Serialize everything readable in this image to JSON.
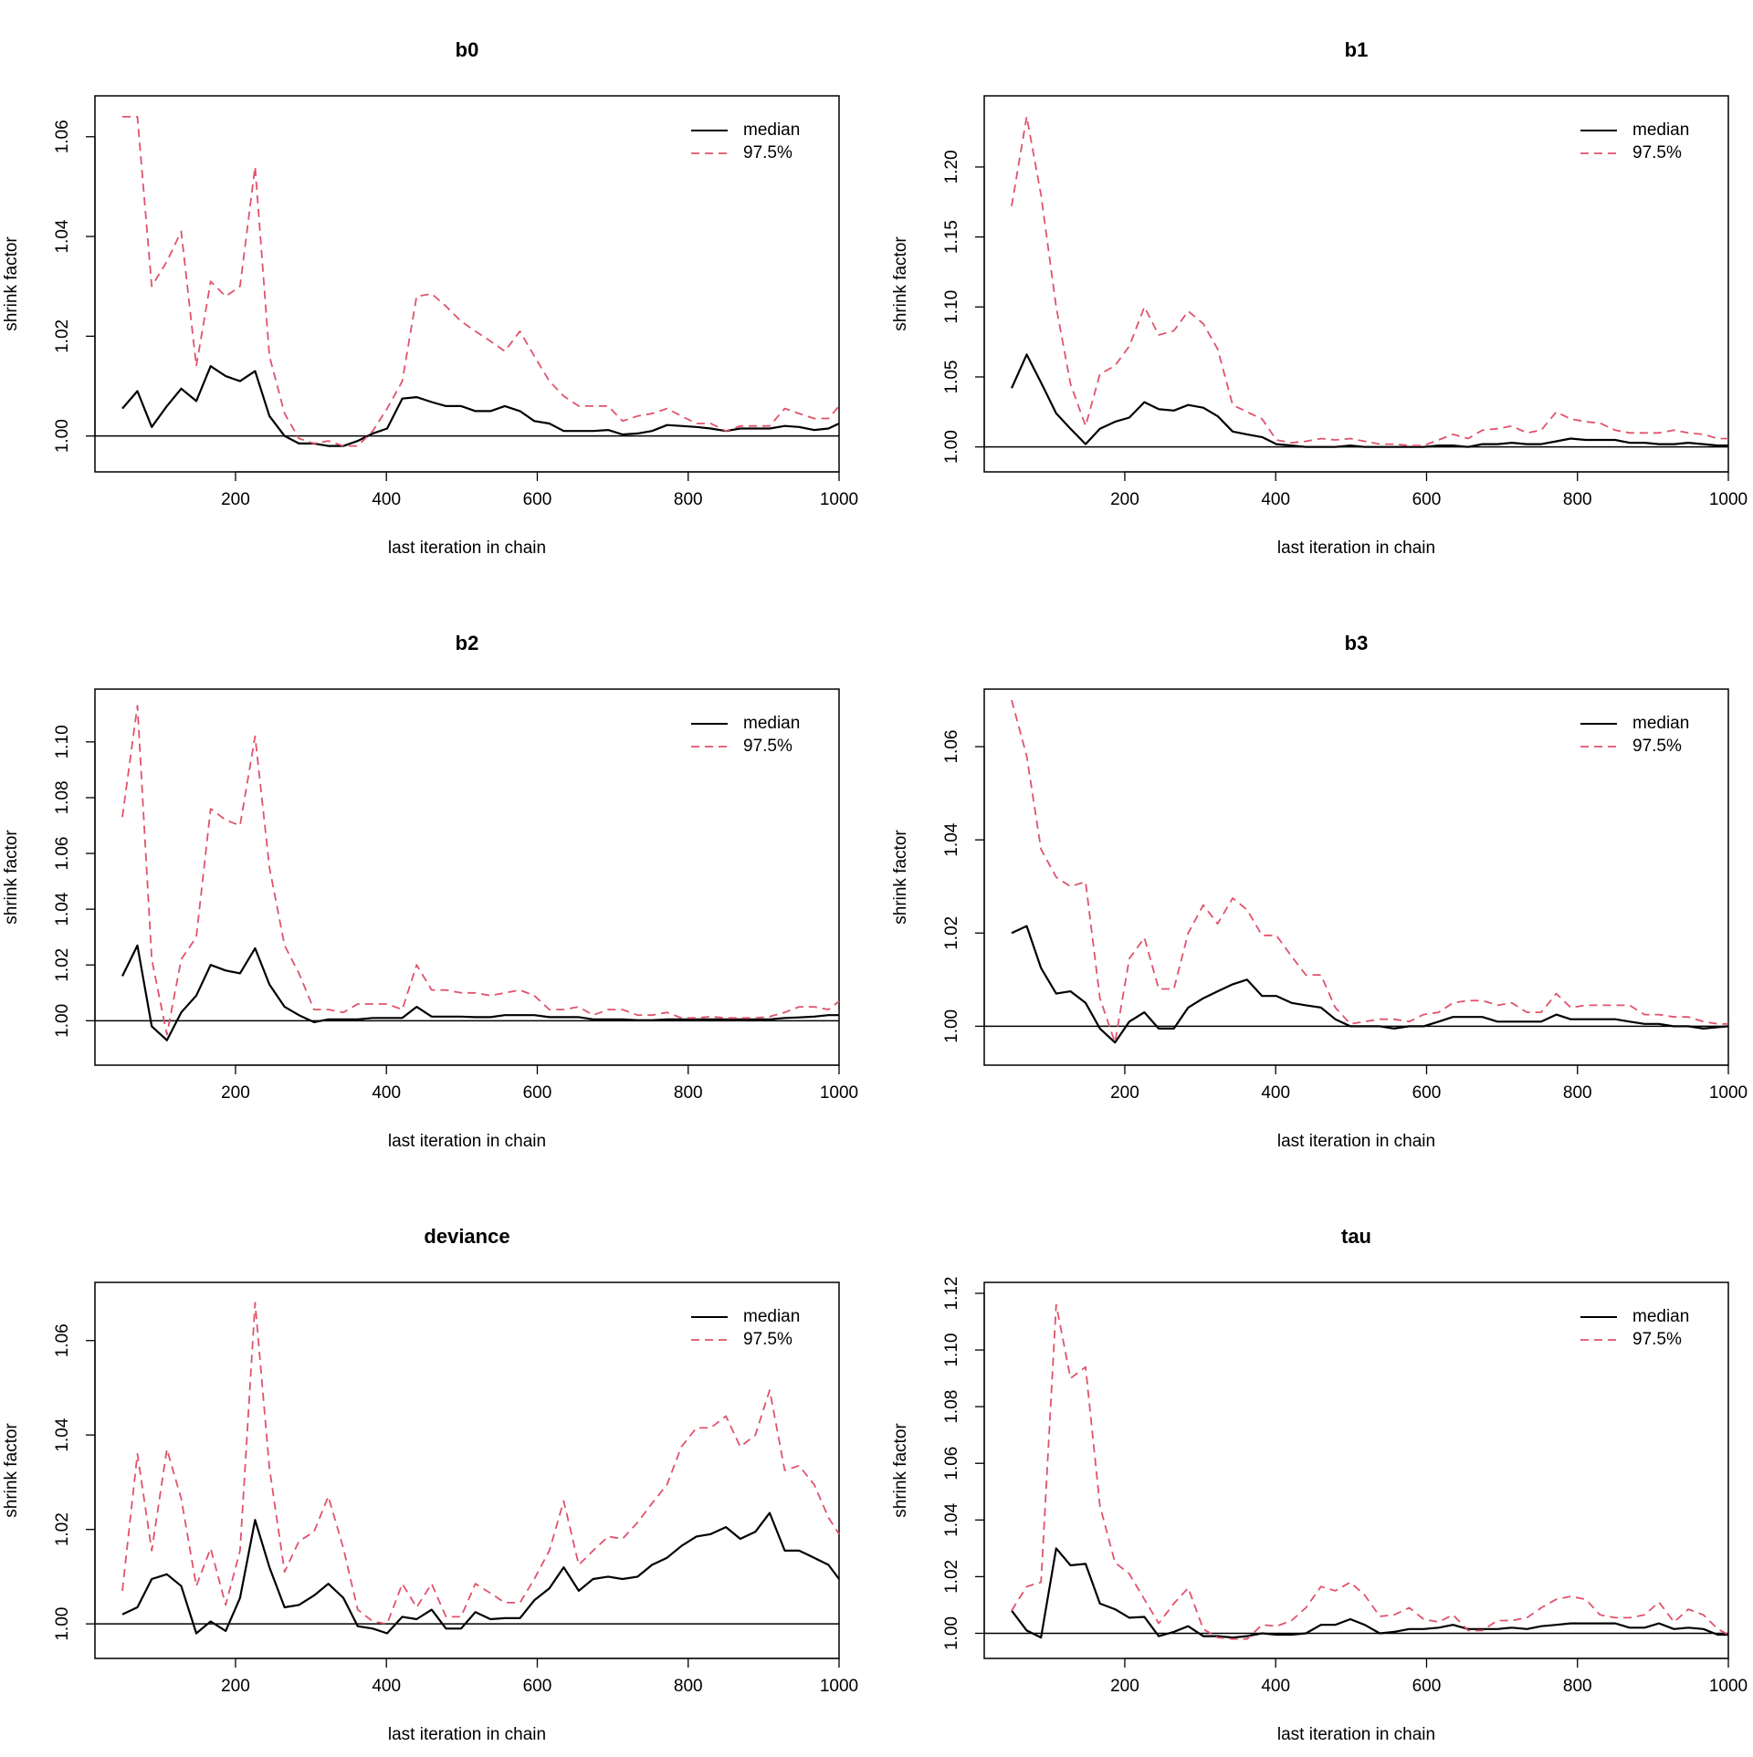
{
  "legend": {
    "median": "median",
    "upper": "97.5%"
  },
  "colors": {
    "median": "#000000",
    "upper": "#DF536B"
  },
  "chart_data": [
    {
      "type": "line",
      "title": "b0",
      "xlabel": "last iteration in chain",
      "ylabel": "shrink factor",
      "xlim": [
        50,
        1000
      ],
      "ylim": [
        0.995,
        1.066
      ],
      "xticks": [
        "200",
        "400",
        "600",
        "800",
        "1000"
      ],
      "yticks": [
        "1.00",
        "1.02",
        "1.04",
        "1.06"
      ],
      "legend_position": "top-right",
      "grid": false,
      "x": [
        50,
        70,
        89,
        109,
        128,
        148,
        167,
        187,
        206,
        226,
        245,
        265,
        284,
        304,
        323,
        343,
        362,
        382,
        401,
        421,
        440,
        460,
        479,
        499,
        518,
        538,
        557,
        577,
        596,
        616,
        635,
        655,
        674,
        694,
        713,
        733,
        752,
        772,
        791,
        811,
        830,
        850,
        869,
        889,
        908,
        928,
        947,
        967,
        986,
        1000
      ],
      "series": [
        {
          "name": "median",
          "values": [
            1.0055,
            1.009,
            1.0018,
            1.006,
            1.0095,
            1.007,
            1.014,
            1.012,
            1.011,
            1.013,
            1.004,
            1.0,
            0.9985,
            0.9985,
            0.998,
            0.998,
            0.999,
            1.0005,
            1.0015,
            1.0075,
            1.0078,
            1.0068,
            1.006,
            1.006,
            1.005,
            1.005,
            1.006,
            1.005,
            1.003,
            1.0025,
            1.001,
            1.001,
            1.001,
            1.0012,
            1.0003,
            1.0005,
            1.001,
            1.0022,
            1.002,
            1.0018,
            1.0015,
            1.001,
            1.0015,
            1.0015,
            1.0015,
            1.002,
            1.0018,
            1.0012,
            1.0015,
            1.0025
          ]
        },
        {
          "name": "97.5%",
          "values": [
            1.064,
            1.064,
            1.03,
            1.035,
            1.041,
            1.014,
            1.031,
            1.028,
            1.03,
            1.054,
            1.016,
            1.0045,
            0.9995,
            0.9985,
            0.999,
            0.998,
            0.998,
            1.001,
            1.0055,
            1.011,
            1.028,
            1.0285,
            1.026,
            1.023,
            1.021,
            1.019,
            1.017,
            1.021,
            1.016,
            1.011,
            1.008,
            1.006,
            1.006,
            1.006,
            1.003,
            1.004,
            1.0045,
            1.0055,
            1.004,
            1.0025,
            1.0025,
            1.001,
            1.002,
            1.002,
            1.002,
            1.0055,
            1.0045,
            1.0035,
            1.0035,
            1.006
          ]
        }
      ]
    },
    {
      "type": "line",
      "title": "b1",
      "xlabel": "last iteration in chain",
      "ylabel": "shrink factor",
      "xlim": [
        50,
        1000
      ],
      "ylim": [
        0.99,
        1.243
      ],
      "xticks": [
        "200",
        "400",
        "600",
        "800",
        "1000"
      ],
      "yticks": [
        "1.00",
        "1.05",
        "1.10",
        "1.15",
        "1.20"
      ],
      "legend_position": "top-right",
      "grid": false,
      "x": [
        50,
        70,
        89,
        109,
        128,
        148,
        167,
        187,
        206,
        226,
        245,
        265,
        284,
        304,
        323,
        343,
        362,
        382,
        401,
        421,
        440,
        460,
        479,
        499,
        518,
        538,
        557,
        577,
        596,
        616,
        635,
        655,
        674,
        694,
        713,
        733,
        752,
        772,
        791,
        811,
        830,
        850,
        869,
        889,
        908,
        928,
        947,
        967,
        986,
        1000
      ],
      "series": [
        {
          "name": "median",
          "values": [
            1.042,
            1.066,
            1.046,
            1.024,
            1.013,
            1.002,
            1.013,
            1.018,
            1.021,
            1.032,
            1.027,
            1.026,
            1.03,
            1.028,
            1.022,
            1.011,
            1.009,
            1.007,
            1.002,
            1.001,
            1.0,
            1.0,
            1.0,
            1.001,
            1.0,
            1.0,
            1.0,
            1.0,
            1.0,
            1.001,
            1.001,
            1.0,
            1.002,
            1.002,
            1.003,
            1.002,
            1.002,
            1.004,
            1.006,
            1.005,
            1.005,
            1.005,
            1.003,
            1.003,
            1.002,
            1.002,
            1.003,
            1.002,
            1.001,
            1.001
          ]
        },
        {
          "name": "97.5%",
          "values": [
            1.172,
            1.236,
            1.18,
            1.1,
            1.045,
            1.015,
            1.052,
            1.058,
            1.072,
            1.1,
            1.08,
            1.083,
            1.097,
            1.088,
            1.07,
            1.03,
            1.025,
            1.02,
            1.005,
            1.003,
            1.004,
            1.006,
            1.005,
            1.006,
            1.004,
            1.002,
            1.002,
            1.001,
            1.001,
            1.005,
            1.009,
            1.006,
            1.012,
            1.013,
            1.015,
            1.01,
            1.012,
            1.025,
            1.02,
            1.018,
            1.017,
            1.012,
            1.01,
            1.01,
            1.01,
            1.012,
            1.01,
            1.009,
            1.006,
            1.006
          ]
        }
      ]
    },
    {
      "type": "line",
      "title": "b2",
      "xlabel": "last iteration in chain",
      "ylabel": "shrink factor",
      "xlim": [
        50,
        1000
      ],
      "ylim": [
        0.988,
        1.115
      ],
      "xticks": [
        "200",
        "400",
        "600",
        "800",
        "1000"
      ],
      "yticks": [
        "1.00",
        "1.02",
        "1.04",
        "1.06",
        "1.08",
        "1.10"
      ],
      "legend_position": "top-right",
      "grid": false,
      "x": [
        50,
        70,
        89,
        109,
        128,
        148,
        167,
        187,
        206,
        226,
        245,
        265,
        284,
        304,
        323,
        343,
        362,
        382,
        401,
        421,
        440,
        460,
        479,
        499,
        518,
        538,
        557,
        577,
        596,
        616,
        635,
        655,
        674,
        694,
        713,
        733,
        752,
        772,
        791,
        811,
        830,
        850,
        869,
        889,
        908,
        928,
        947,
        967,
        986,
        1000
      ],
      "series": [
        {
          "name": "median",
          "values": [
            1.016,
            1.027,
            0.998,
            0.993,
            1.003,
            1.009,
            1.02,
            1.018,
            1.017,
            1.026,
            1.013,
            1.005,
            1.002,
            0.9995,
            1.0005,
            1.0005,
            1.0005,
            1.001,
            1.001,
            1.001,
            1.005,
            1.0015,
            1.0015,
            1.0015,
            1.0013,
            1.0013,
            1.002,
            1.002,
            1.002,
            1.0013,
            1.0013,
            1.0013,
            1.0005,
            1.0005,
            1.0005,
            1.0002,
            1.0002,
            1.0005,
            1.0005,
            1.0005,
            1.0005,
            1.0005,
            1.0005,
            1.0005,
            1.0005,
            1.001,
            1.0012,
            1.0015,
            1.002,
            1.002
          ]
        },
        {
          "name": "97.5%",
          "values": [
            1.073,
            1.113,
            1.022,
            0.995,
            1.022,
            1.03,
            1.076,
            1.072,
            1.07,
            1.102,
            1.055,
            1.027,
            1.017,
            1.004,
            1.004,
            1.003,
            1.006,
            1.006,
            1.006,
            1.004,
            1.02,
            1.011,
            1.011,
            1.01,
            1.01,
            1.009,
            1.01,
            1.011,
            1.009,
            1.004,
            1.004,
            1.005,
            1.002,
            1.004,
            1.004,
            1.002,
            1.002,
            1.003,
            1.001,
            1.001,
            1.0015,
            1.001,
            1.001,
            1.001,
            1.0015,
            1.003,
            1.005,
            1.005,
            1.004,
            1.007
          ]
        }
      ]
    },
    {
      "type": "line",
      "title": "b3",
      "xlabel": "last iteration in chain",
      "ylabel": "shrink factor",
      "xlim": [
        50,
        1000
      ],
      "ylim": [
        0.994,
        1.07
      ],
      "xticks": [
        "200",
        "400",
        "600",
        "800",
        "1000"
      ],
      "yticks": [
        "1.00",
        "1.02",
        "1.04",
        "1.06"
      ],
      "legend_position": "top-right",
      "grid": false,
      "x": [
        50,
        70,
        89,
        109,
        128,
        148,
        167,
        187,
        206,
        226,
        245,
        265,
        284,
        304,
        323,
        343,
        362,
        382,
        401,
        421,
        440,
        460,
        479,
        499,
        518,
        538,
        557,
        577,
        596,
        616,
        635,
        655,
        674,
        694,
        713,
        733,
        752,
        772,
        791,
        811,
        830,
        850,
        869,
        889,
        908,
        928,
        947,
        967,
        986,
        1000
      ],
      "series": [
        {
          "name": "median",
          "values": [
            1.02,
            1.0215,
            1.0125,
            1.007,
            1.0075,
            1.005,
            0.9995,
            0.9965,
            1.001,
            1.003,
            0.9995,
            0.9995,
            1.004,
            1.006,
            1.0075,
            1.009,
            1.01,
            1.0065,
            1.0065,
            1.005,
            1.0045,
            1.004,
            1.0015,
            1.0,
            1.0,
            1.0,
            0.9995,
            1.0,
            1.0,
            1.001,
            1.002,
            1.002,
            1.002,
            1.001,
            1.001,
            1.001,
            1.001,
            1.0025,
            1.0015,
            1.0015,
            1.0015,
            1.0015,
            1.001,
            1.0005,
            1.0005,
            1.0,
            1.0,
            0.9995,
            0.9998,
            1.0
          ]
        },
        {
          "name": "97.5%",
          "values": [
            1.07,
            1.058,
            1.038,
            1.032,
            1.03,
            1.031,
            1.006,
            0.9965,
            1.0145,
            1.019,
            1.008,
            1.008,
            1.02,
            1.026,
            1.022,
            1.0275,
            1.025,
            1.0195,
            1.0195,
            1.015,
            1.011,
            1.011,
            1.004,
            1.0005,
            1.001,
            1.0015,
            1.0015,
            1.001,
            1.0025,
            1.003,
            1.005,
            1.0055,
            1.0055,
            1.0045,
            1.005,
            1.003,
            1.003,
            1.007,
            1.004,
            1.0045,
            1.0045,
            1.0045,
            1.0045,
            1.0025,
            1.0025,
            1.002,
            1.002,
            1.001,
            1.0005,
            1.0005
          ]
        }
      ]
    },
    {
      "type": "line",
      "title": "deviance",
      "xlabel": "last iteration in chain",
      "ylabel": "shrink factor",
      "xlim": [
        50,
        1000
      ],
      "ylim": [
        0.995,
        1.07
      ],
      "xticks": [
        "200",
        "400",
        "600",
        "800",
        "1000"
      ],
      "yticks": [
        "1.00",
        "1.02",
        "1.04",
        "1.06"
      ],
      "legend_position": "top-right",
      "grid": false,
      "x": [
        50,
        70,
        89,
        109,
        128,
        148,
        167,
        187,
        206,
        226,
        245,
        265,
        284,
        304,
        323,
        343,
        362,
        382,
        401,
        421,
        440,
        460,
        479,
        499,
        518,
        538,
        557,
        577,
        596,
        616,
        635,
        655,
        674,
        694,
        713,
        733,
        752,
        772,
        791,
        811,
        830,
        850,
        869,
        889,
        908,
        928,
        947,
        967,
        986,
        1000
      ],
      "series": [
        {
          "name": "median",
          "values": [
            1.002,
            1.0035,
            1.0095,
            1.0105,
            1.008,
            0.998,
            1.0005,
            0.9985,
            1.0055,
            1.022,
            1.012,
            1.0035,
            1.004,
            1.006,
            1.0085,
            1.0055,
            0.9995,
            0.999,
            0.998,
            1.0015,
            1.001,
            1.003,
            0.999,
            0.999,
            1.0025,
            1.001,
            1.0012,
            1.0012,
            1.005,
            1.0075,
            1.012,
            1.007,
            1.0095,
            1.01,
            1.0095,
            1.01,
            1.0125,
            1.014,
            1.0165,
            1.0185,
            1.019,
            1.0205,
            1.018,
            1.0195,
            1.0235,
            1.0155,
            1.0155,
            1.014,
            1.0125,
            1.0095
          ]
        },
        {
          "name": "97.5%",
          "values": [
            1.007,
            1.036,
            1.0155,
            1.037,
            1.0265,
            1.008,
            1.016,
            1.004,
            1.0155,
            1.068,
            1.033,
            1.011,
            1.0175,
            1.0195,
            1.027,
            1.016,
            1.003,
            1.0005,
            1.0,
            1.0085,
            1.0035,
            1.0085,
            1.0015,
            1.0015,
            1.0085,
            1.0065,
            1.0045,
            1.0045,
            1.0095,
            1.0155,
            1.026,
            1.0125,
            1.0155,
            1.0185,
            1.018,
            1.0215,
            1.0255,
            1.0295,
            1.0375,
            1.0415,
            1.0415,
            1.044,
            1.0375,
            1.04,
            1.0495,
            1.0325,
            1.0335,
            1.0295,
            1.0225,
            1.019
          ]
        }
      ]
    },
    {
      "type": "line",
      "title": "tau",
      "xlabel": "last iteration in chain",
      "ylabel": "shrink factor",
      "xlim": [
        50,
        1000
      ],
      "ylim": [
        0.995,
        1.12
      ],
      "xticks": [
        "200",
        "400",
        "600",
        "800",
        "1000"
      ],
      "yticks": [
        "1.00",
        "1.02",
        "1.04",
        "1.06",
        "1.08",
        "1.10",
        "1.12"
      ],
      "legend_position": "top-right",
      "grid": false,
      "x": [
        50,
        70,
        89,
        109,
        128,
        148,
        167,
        187,
        206,
        226,
        245,
        265,
        284,
        304,
        323,
        343,
        362,
        382,
        401,
        421,
        440,
        460,
        479,
        499,
        518,
        538,
        557,
        577,
        596,
        616,
        635,
        655,
        674,
        694,
        713,
        733,
        752,
        772,
        791,
        811,
        830,
        850,
        869,
        889,
        908,
        928,
        947,
        967,
        986,
        1000
      ],
      "series": [
        {
          "name": "median",
          "values": [
            1.008,
            1.001,
            0.9985,
            1.03,
            1.024,
            1.0245,
            1.0105,
            1.0085,
            1.0055,
            1.0058,
            0.999,
            1.0005,
            1.0025,
            0.999,
            0.999,
            0.9985,
            0.999,
            1.0,
            0.9995,
            0.9995,
            1.0,
            1.003,
            1.003,
            1.005,
            1.003,
            1.0,
            1.0005,
            1.0015,
            1.0015,
            1.002,
            1.003,
            1.0015,
            1.0015,
            1.0015,
            1.002,
            1.0015,
            1.0025,
            1.003,
            1.0035,
            1.0035,
            1.0035,
            1.0035,
            1.002,
            1.002,
            1.0035,
            1.0015,
            1.002,
            1.0015,
            0.9995,
            0.9995
          ]
        },
        {
          "name": "97.5%",
          "values": [
            1.008,
            1.0165,
            1.018,
            1.116,
            1.09,
            1.094,
            1.045,
            1.025,
            1.021,
            1.012,
            1.0035,
            1.0105,
            1.016,
            1.0015,
            0.9985,
            0.998,
            0.998,
            1.003,
            1.0025,
            1.0045,
            1.009,
            1.0165,
            1.015,
            1.018,
            1.0135,
            1.006,
            1.0065,
            1.009,
            1.005,
            1.004,
            1.0065,
            1.001,
            1.001,
            1.0045,
            1.0045,
            1.0055,
            1.009,
            1.012,
            1.013,
            1.012,
            1.0065,
            1.0055,
            1.0055,
            1.0065,
            1.011,
            1.004,
            1.0085,
            1.0065,
            1.0015,
            0.9995
          ]
        }
      ]
    }
  ]
}
